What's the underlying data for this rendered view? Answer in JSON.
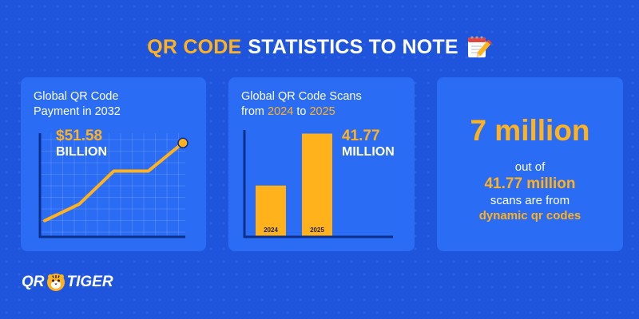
{
  "header": {
    "title_highlight": "QR CODE",
    "title_rest": "STATISTICS TO NOTE",
    "icon": "notepad-pencil-icon"
  },
  "colors": {
    "background": "#1f55dc",
    "card": "#2b6cf5",
    "accent": "#ffb21c",
    "text": "#ffffff"
  },
  "card1": {
    "title_line1": "Global QR Code",
    "title_line2": "Payment in 2032",
    "value": "$51.58",
    "unit": "BILLION"
  },
  "card2": {
    "title_line1": "Global QR Code Scans",
    "title_from": "from ",
    "year_a": "2024",
    "title_to": " to ",
    "year_b": "2025",
    "value": "41.77",
    "unit": "MILLION"
  },
  "card3": {
    "big": "7 million",
    "line1": "out of",
    "line2": "41.77 million",
    "line3": "scans are from",
    "line4": "dynamic qr codes"
  },
  "logo": {
    "left": "QR",
    "right": "TIGER",
    "icon": "tiger-icon"
  },
  "chart_data": [
    {
      "type": "line",
      "title": "Global QR Code Payment in 2032",
      "y": [
        0.5,
        1.5,
        3.5,
        3.5,
        5.2
      ],
      "highlight_label": "$51.58 BILLION",
      "grid": true
    },
    {
      "type": "bar",
      "title": "Global QR Code Scans from 2024 to 2025",
      "categories": [
        "2024",
        "2025"
      ],
      "values": [
        20.5,
        41.77
      ],
      "value_label": "41.77 MILLION",
      "grid": false
    }
  ]
}
